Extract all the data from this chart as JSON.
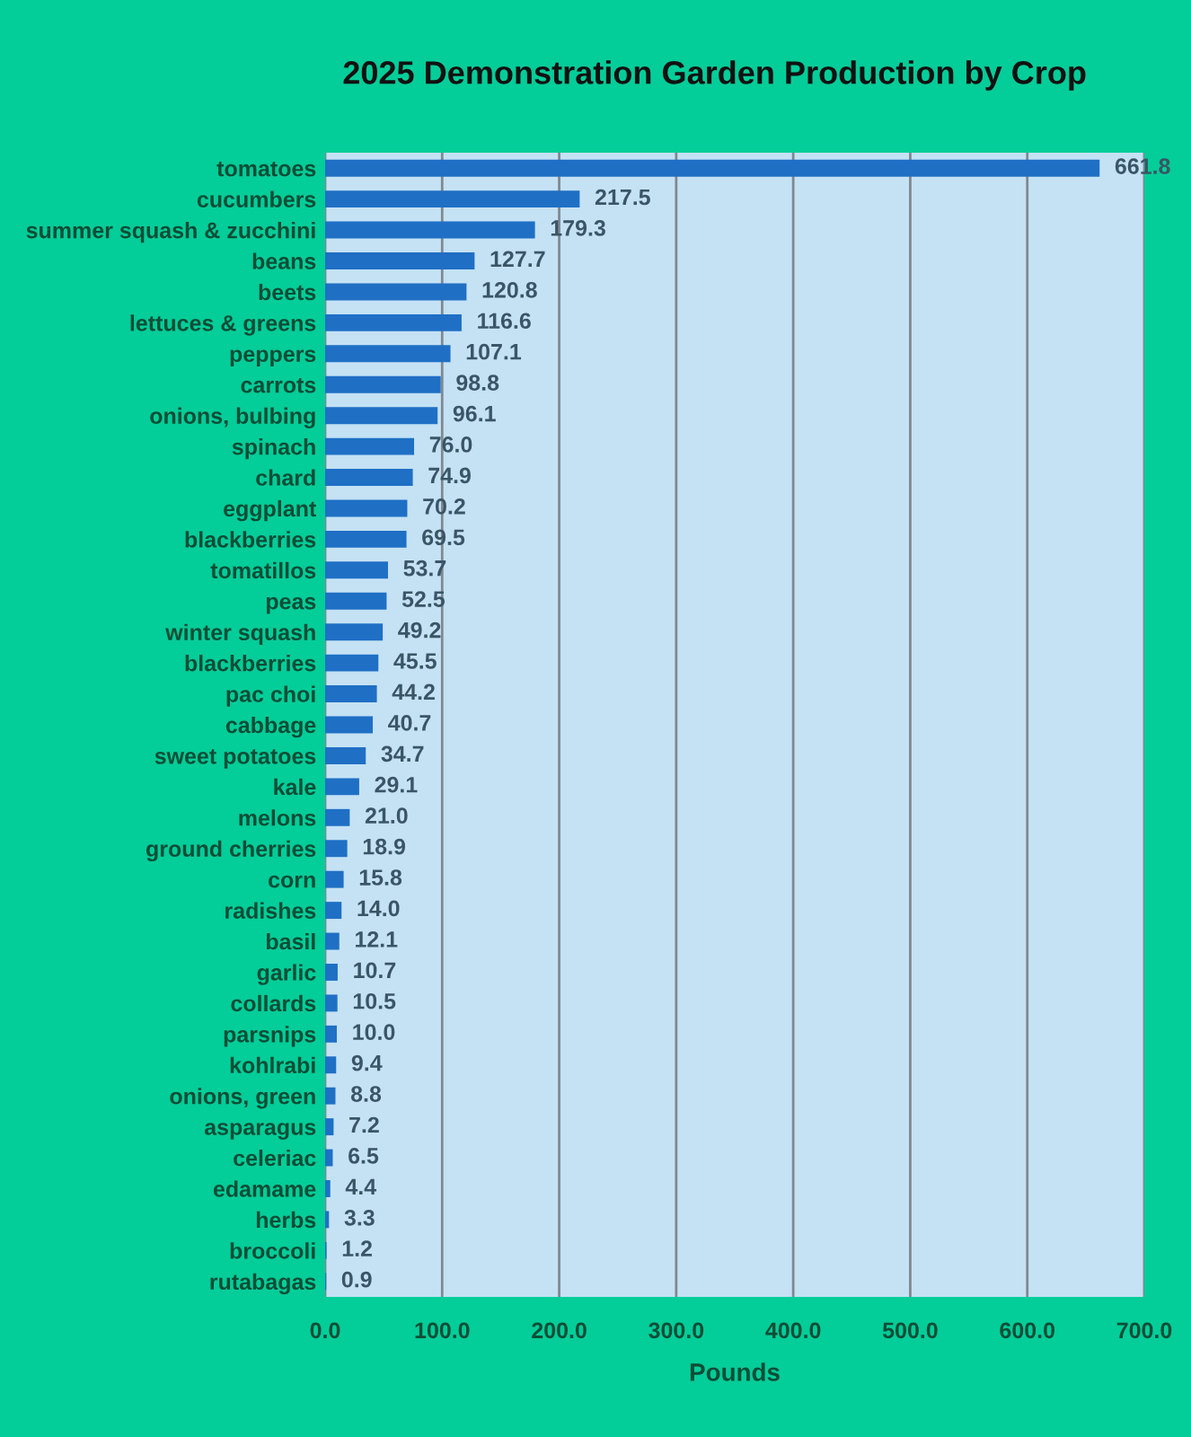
{
  "chart_data": {
    "type": "bar",
    "orientation": "horizontal",
    "title": "2025 Demonstration Garden Production by Crop",
    "xlabel": "Pounds",
    "categories": [
      "tomatoes",
      "cucumbers",
      "summer squash & zucchini",
      "beans",
      "beets",
      "lettuces & greens",
      "peppers",
      "carrots",
      "onions, bulbing",
      "spinach",
      "chard",
      "eggplant",
      "blackberries",
      "tomatillos",
      "peas",
      "winter squash",
      "blackberries",
      "pac choi",
      "cabbage",
      "sweet potatoes",
      "kale",
      "melons",
      "ground cherries",
      "corn",
      "radishes",
      "basil",
      "garlic",
      "collards",
      "parsnips",
      "kohlrabi",
      "onions, green",
      "asparagus",
      "celeriac",
      "edamame",
      "herbs",
      "broccoli",
      "rutabagas"
    ],
    "values": [
      661.8,
      217.5,
      179.3,
      127.7,
      120.8,
      116.6,
      107.1,
      98.8,
      96.1,
      76.0,
      74.9,
      70.2,
      69.5,
      53.7,
      52.5,
      49.2,
      45.5,
      44.2,
      40.7,
      34.7,
      29.1,
      21.0,
      18.9,
      15.8,
      14.0,
      12.1,
      10.7,
      10.5,
      10.0,
      9.4,
      8.8,
      7.2,
      6.5,
      4.4,
      3.3,
      1.2,
      0.9
    ],
    "value_labels": [
      "661.8",
      "217.5",
      "179.3",
      "127.7",
      "120.8",
      "116.6",
      "107.1",
      "98.8",
      "96.1",
      "76.0",
      "74.9",
      "70.2",
      "69.5",
      "53.7",
      "52.5",
      "49.2",
      "45.5",
      "44.2",
      "40.7",
      "34.7",
      "29.1",
      "21.0",
      "18.9",
      "15.8",
      "14.0",
      "12.1",
      "10.7",
      "10.5",
      "10.0",
      "9.4",
      "8.8",
      "7.2",
      "6.5",
      "4.4",
      "3.3",
      "1.2",
      "0.9"
    ],
    "color": "#1f6fc5",
    "xlim": [
      0,
      700
    ],
    "xticks": [
      {
        "value": 0,
        "label": "0.0"
      },
      {
        "value": 100,
        "label": "100.0"
      },
      {
        "value": 200,
        "label": "200.0"
      },
      {
        "value": 300,
        "label": "300.0"
      },
      {
        "value": 400,
        "label": "400.0"
      },
      {
        "value": 500,
        "label": "500.0"
      },
      {
        "value": 600,
        "label": "600.0"
      },
      {
        "value": 700,
        "label": "700.0"
      }
    ],
    "grid": "x",
    "legend": false
  }
}
